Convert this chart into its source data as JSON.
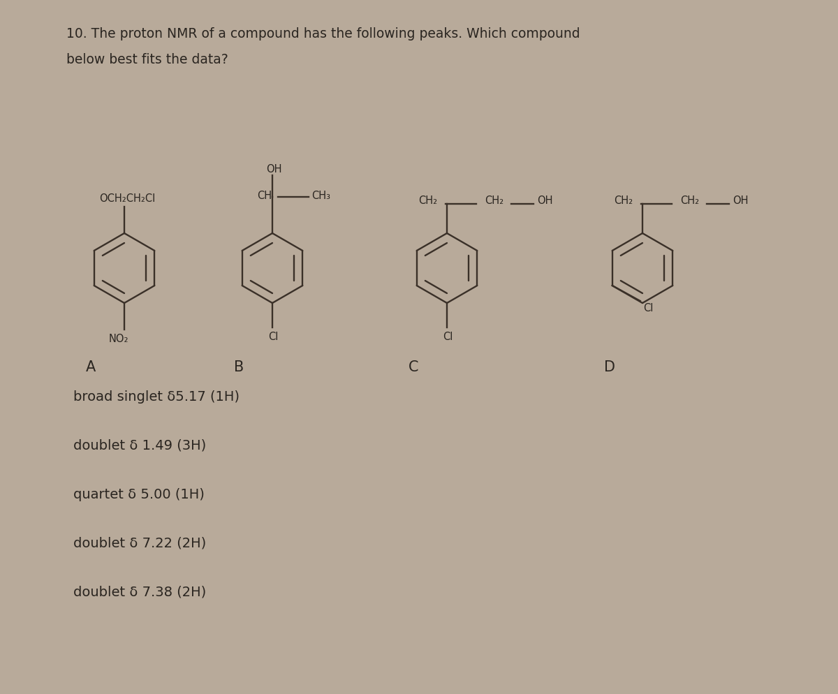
{
  "title_line1": "10. The proton NMR of a compound has the following peaks. Which compound",
  "title_line2": "below best fits the data?",
  "bg_color": "#b8aa9a",
  "paper_color": "#d4c8b8",
  "text_color": "#2a2520",
  "line_color": "#3a3028",
  "nmr_peaks": [
    "broad singlet ε5.17 (1H)",
    "doublet δ 1.49 (3H)",
    "quartet δ 5.00 (1H)",
    "doublet δ 7.22 (2H)",
    "doublet δ 7.38 (2H)"
  ],
  "title_fontsize": 13.5,
  "label_fontsize": 15,
  "nmr_fontsize": 14,
  "chem_fontsize": 10.5
}
